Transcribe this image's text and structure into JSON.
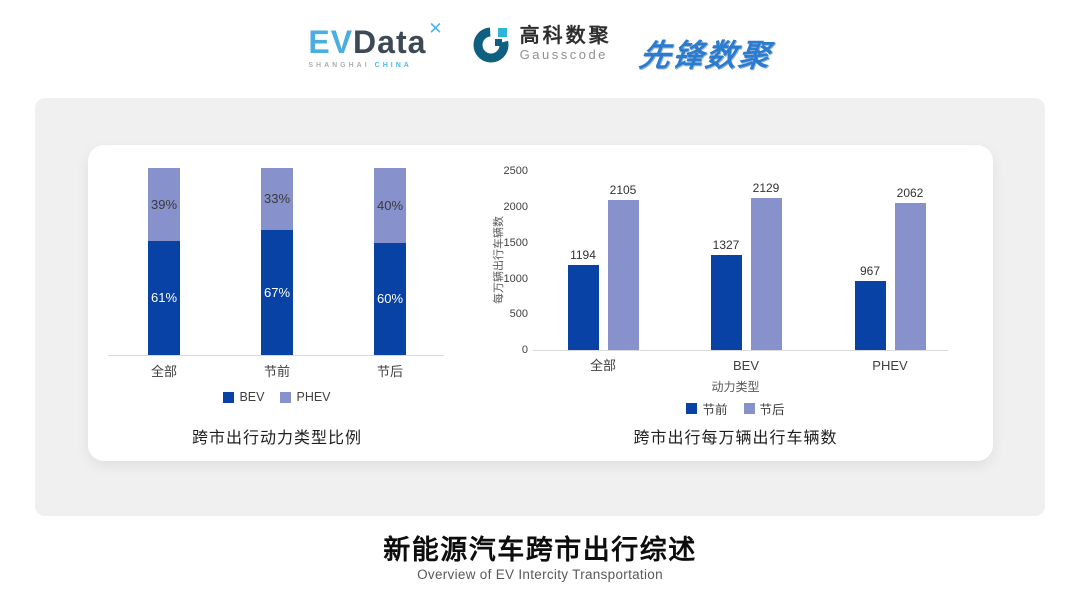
{
  "header": {
    "evdata": {
      "ev": "EV",
      "data": "Data",
      "mark": "✕",
      "sub_left": "SHANGHAI",
      "sub_right": "CHINA"
    },
    "gausscode": {
      "cn": "高科数聚",
      "en": "Gausscode"
    },
    "pioneer": {
      "text": "先锋数聚"
    }
  },
  "chart_data": [
    {
      "type": "bar",
      "subtype": "stacked-100pct",
      "title": "跨市出行动力类型比例",
      "categories": [
        "全部",
        "节前",
        "节后"
      ],
      "series": [
        {
          "name": "BEV",
          "values": [
            61,
            67,
            60
          ],
          "color": "#0842A5",
          "label_color": "#FFFFFF"
        },
        {
          "name": "PHEV",
          "values": [
            39,
            33,
            40
          ],
          "color": "#8791CB",
          "label_color": "#3A3A3A"
        }
      ],
      "unit": "%",
      "ylim": [
        0,
        100
      ],
      "grid": false,
      "legend_position": "bottom"
    },
    {
      "type": "bar",
      "subtype": "grouped",
      "title": "跨市出行每万辆出行车辆数",
      "categories": [
        "全部",
        "BEV",
        "PHEV"
      ],
      "series": [
        {
          "name": "节前",
          "values": [
            1194,
            1327,
            967
          ],
          "color": "#0842A5"
        },
        {
          "name": "节后",
          "values": [
            2105,
            2129,
            2062
          ],
          "color": "#8791CB"
        }
      ],
      "xlabel": "动力类型",
      "ylabel": "每万辆出行车辆数",
      "ylim": [
        0,
        2500
      ],
      "yticks": [
        0,
        500,
        1000,
        1500,
        2000,
        2500
      ],
      "grid": false,
      "legend_position": "bottom"
    }
  ],
  "footer": {
    "title": "新能源汽车跨市出行综述",
    "subtitle": "Overview of EV Intercity Transportation"
  },
  "colors": {
    "series_dark_blue": "#0842A5",
    "series_light_blue": "#8791CB",
    "panel_gray": "#F0F0F0",
    "card_white": "#FFFFFF",
    "axis_line": "#D9D9D9",
    "brand_cyan": "#49B8E8",
    "brand_slate": "#3D4A55",
    "brand_navy": "#0E5F80",
    "pioneer_blue": "#2B7CCE"
  }
}
